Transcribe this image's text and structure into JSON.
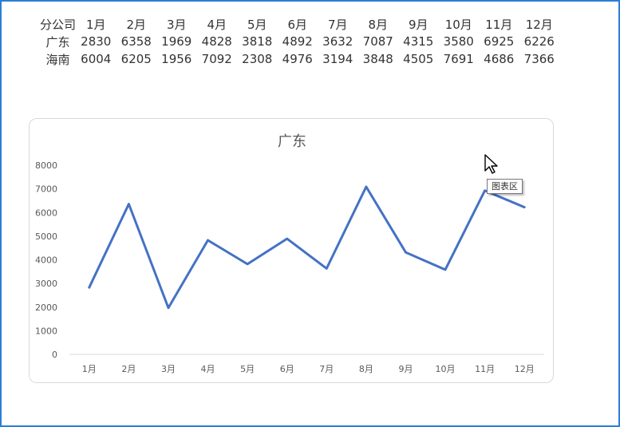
{
  "table": {
    "header": [
      "分公司",
      "1月",
      "2月",
      "3月",
      "4月",
      "5月",
      "6月",
      "7月",
      "8月",
      "9月",
      "10月",
      "11月",
      "12月"
    ],
    "rows": [
      [
        "广东",
        "2830",
        "6358",
        "1969",
        "4828",
        "3818",
        "4892",
        "3632",
        "7087",
        "4315",
        "3580",
        "6925",
        "6226"
      ],
      [
        "海南",
        "6004",
        "6205",
        "1956",
        "7092",
        "2308",
        "4976",
        "3194",
        "3848",
        "4505",
        "7691",
        "4686",
        "7366"
      ]
    ]
  },
  "chart_data": {
    "type": "line",
    "title": "广东",
    "categories": [
      "1月",
      "2月",
      "3月",
      "4月",
      "5月",
      "6月",
      "7月",
      "8月",
      "9月",
      "10月",
      "11月",
      "12月"
    ],
    "series": [
      {
        "values": [
          2830,
          6358,
          1969,
          4828,
          3818,
          4892,
          3632,
          7087,
          4315,
          3580,
          6925,
          6226
        ]
      }
    ],
    "yticks": [
      "0",
      "1000",
      "2000",
      "3000",
      "4000",
      "5000",
      "6000",
      "7000",
      "8000"
    ],
    "ylim": [
      0,
      8000
    ],
    "grid": false,
    "legend": "none",
    "line_color": "#4472c4"
  },
  "tooltip": {
    "label": "图表区"
  }
}
